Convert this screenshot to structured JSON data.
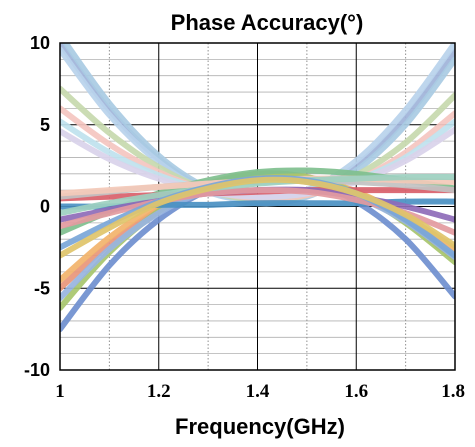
{
  "chart_data": {
    "type": "line",
    "title": "Phase Accuracy(°)",
    "xlabel": "Frequency(GHz)",
    "ylabel": "",
    "xlim": [
      1.0,
      1.8
    ],
    "ylim": [
      -10,
      10
    ],
    "x_ticks": [
      "1",
      "1.2",
      "1.4",
      "1.6",
      "1.8"
    ],
    "y_ticks": [
      "10",
      "5",
      "0",
      "-5",
      "-10"
    ],
    "x_tick_values": [
      1.0,
      1.2,
      1.4,
      1.6,
      1.8
    ],
    "y_tick_values": [
      10,
      5,
      0,
      -5,
      -10
    ],
    "x_minor_step": 0.1,
    "y_minor_step": 1,
    "grid": true,
    "legend": "none",
    "x": [
      1.0,
      1.1,
      1.2,
      1.3,
      1.4,
      1.5,
      1.6,
      1.7,
      1.8
    ],
    "series": [
      {
        "color": "#9fb3d9",
        "values": [
          10.0,
          5.9,
          2.9,
          1.0,
          0.3,
          0.8,
          2.5,
          5.4,
          9.5
        ]
      },
      {
        "color": "#a9cbe3",
        "values": [
          10.5,
          6.3,
          3.1,
          1.1,
          0.2,
          0.6,
          2.2,
          5.0,
          9.0
        ]
      },
      {
        "color": "#b9d3ec",
        "values": [
          9.6,
          5.6,
          2.7,
          0.9,
          0.4,
          1.0,
          2.8,
          5.9,
          10.0
        ]
      },
      {
        "color": "#c7d9ae",
        "values": [
          7.2,
          4.5,
          2.4,
          1.0,
          0.4,
          0.7,
          1.9,
          3.9,
          6.8
        ]
      },
      {
        "color": "#f4c6c0",
        "values": [
          6.0,
          3.8,
          2.1,
          1.0,
          0.5,
          0.7,
          1.6,
          3.3,
          5.7
        ]
      },
      {
        "color": "#bfe2ee",
        "values": [
          5.2,
          3.3,
          1.9,
          1.0,
          0.6,
          0.8,
          1.6,
          3.0,
          5.2
        ]
      },
      {
        "color": "#d9d2ea",
        "values": [
          4.6,
          2.9,
          1.7,
          0.9,
          0.6,
          0.8,
          1.5,
          2.8,
          4.7
        ]
      },
      {
        "color": "#6f8fcf",
        "values": [
          -7.5,
          -3.6,
          -0.8,
          1.0,
          1.8,
          1.6,
          0.3,
          -2.0,
          -5.5
        ]
      },
      {
        "color": "#e8967a",
        "values": [
          -5.0,
          -2.3,
          -0.2,
          1.2,
          1.8,
          1.6,
          0.7,
          -0.9,
          -3.2
        ]
      },
      {
        "color": "#f2b36b",
        "values": [
          -4.5,
          -1.9,
          0.1,
          1.4,
          2.0,
          1.8,
          0.9,
          -0.6,
          -2.6
        ]
      },
      {
        "color": "#a7c56c",
        "values": [
          -6.2,
          -2.8,
          -0.3,
          1.3,
          2.0,
          1.8,
          0.8,
          -1.0,
          -3.4
        ]
      },
      {
        "color": "#98b4e0",
        "values": [
          -5.6,
          -2.6,
          -0.4,
          1.0,
          1.6,
          1.5,
          0.6,
          -0.9,
          -3.1
        ]
      },
      {
        "color": "#7fbf8e",
        "values": [
          -1.6,
          -0.3,
          0.8,
          1.6,
          2.1,
          2.2,
          2.0,
          1.6,
          1.1
        ]
      },
      {
        "color": "#d9606a",
        "values": [
          0.5,
          0.6,
          0.7,
          0.8,
          0.9,
          1.0,
          1.0,
          1.0,
          1.0
        ]
      },
      {
        "color": "#4a90c2",
        "values": [
          0.0,
          0.0,
          0.1,
          0.1,
          0.2,
          0.2,
          0.2,
          0.3,
          0.3
        ]
      },
      {
        "color": "#c2c2c2",
        "values": [
          0.6,
          0.9,
          1.2,
          1.4,
          1.5,
          1.6,
          1.5,
          1.3,
          1.0
        ]
      },
      {
        "color": "#f3c9b8",
        "values": [
          0.8,
          1.0,
          1.2,
          1.4,
          1.6,
          1.7,
          1.7,
          1.6,
          1.5
        ]
      },
      {
        "color": "#8e6bb8",
        "values": [
          -0.8,
          -0.2,
          0.4,
          0.8,
          1.0,
          1.0,
          0.6,
          0.0,
          -0.8
        ]
      },
      {
        "color": "#e39aa0",
        "values": [
          -1.2,
          -0.4,
          0.3,
          0.8,
          1.0,
          0.9,
          0.4,
          -0.4,
          -1.6
        ]
      },
      {
        "color": "#9dd0c0",
        "values": [
          -0.4,
          0.2,
          0.7,
          1.1,
          1.4,
          1.6,
          1.7,
          1.8,
          1.8
        ]
      },
      {
        "color": "#7aa6d8",
        "values": [
          -2.5,
          -1.0,
          0.3,
          1.2,
          1.7,
          1.6,
          0.8,
          -0.8,
          -3.0
        ]
      },
      {
        "color": "#e0c46a",
        "values": [
          -3.0,
          -1.3,
          0.2,
          1.1,
          1.6,
          1.5,
          0.8,
          -0.5,
          -2.4
        ]
      }
    ]
  }
}
